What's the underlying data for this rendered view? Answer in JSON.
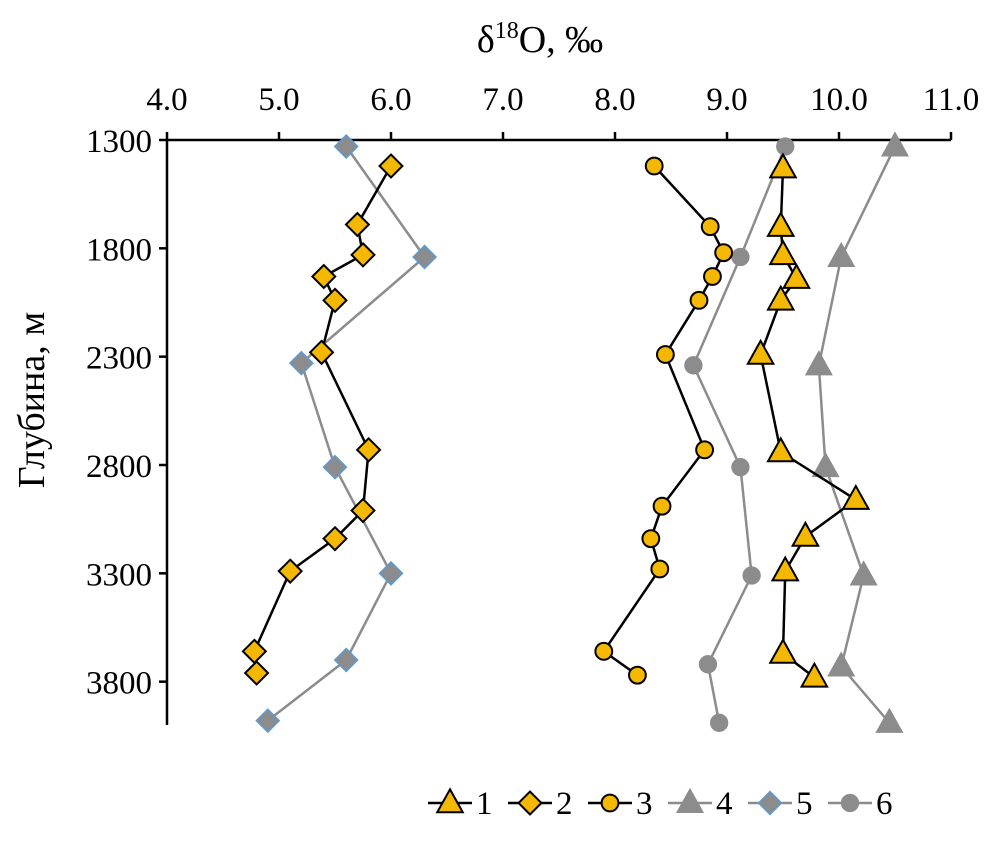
{
  "chart_data": {
    "type": "line",
    "x_axis": {
      "label_main": "δ",
      "label_sup": "18",
      "label_rest": "O, ‰",
      "position": "top",
      "min": 4.0,
      "max": 11.0,
      "ticks": [
        4.0,
        5.0,
        6.0,
        7.0,
        8.0,
        9.0,
        10.0,
        11.0
      ],
      "tick_labels": [
        "4.0",
        "5.0",
        "6.0",
        "7.0",
        "8.0",
        "9.0",
        "10.0",
        "11.0"
      ]
    },
    "y_axis": {
      "label": "Глубина, м",
      "min": 1300,
      "max": 4000,
      "inverted": true,
      "ticks": [
        1300,
        1800,
        2300,
        2800,
        3300,
        3800
      ],
      "tick_labels": [
        "1300",
        "1800",
        "2300",
        "2800",
        "3300",
        "3800"
      ]
    },
    "grid": false,
    "legend_position": "bottom",
    "series": [
      {
        "name": "1",
        "marker": "triangle",
        "line_color": "#000000",
        "fill": "#f5b800",
        "stroke": "#000000",
        "points": [
          [
            9.5,
            1430
          ],
          [
            9.48,
            1700
          ],
          [
            9.5,
            1830
          ],
          [
            9.62,
            1940
          ],
          [
            9.48,
            2040
          ],
          [
            9.3,
            2290
          ],
          [
            9.48,
            2740
          ],
          [
            10.15,
            2960
          ],
          [
            9.7,
            3130
          ],
          [
            9.52,
            3290
          ],
          [
            9.5,
            3670
          ],
          [
            9.78,
            3780
          ]
        ]
      },
      {
        "name": "2",
        "marker": "diamond",
        "line_color": "#000000",
        "fill": "#f5b800",
        "stroke": "#000000",
        "points": [
          [
            6.0,
            1420
          ],
          [
            5.7,
            1690
          ],
          [
            5.75,
            1830
          ],
          [
            5.4,
            1930
          ],
          [
            5.5,
            2040
          ],
          [
            5.38,
            2280
          ],
          [
            5.8,
            2730
          ],
          [
            5.75,
            3010
          ],
          [
            5.5,
            3140
          ],
          [
            5.1,
            3290
          ],
          [
            4.78,
            3660
          ],
          [
            4.8,
            3760
          ]
        ]
      },
      {
        "name": "3",
        "marker": "circle",
        "line_color": "#000000",
        "fill": "#f5b800",
        "stroke": "#000000",
        "points": [
          [
            8.35,
            1420
          ],
          [
            8.85,
            1700
          ],
          [
            8.97,
            1820
          ],
          [
            8.87,
            1930
          ],
          [
            8.75,
            2040
          ],
          [
            8.45,
            2290
          ],
          [
            8.8,
            2730
          ],
          [
            8.42,
            2990
          ],
          [
            8.32,
            3140
          ],
          [
            8.4,
            3280
          ],
          [
            7.9,
            3660
          ],
          [
            8.2,
            3770
          ]
        ]
      },
      {
        "name": "4",
        "marker": "triangle",
        "line_color": "#8c8c8c",
        "fill": "#8c8c8c",
        "stroke": "#8c8c8c",
        "points": [
          [
            10.5,
            1330
          ],
          [
            10.02,
            1840
          ],
          [
            9.82,
            2340
          ],
          [
            9.88,
            2810
          ],
          [
            10.22,
            3310
          ],
          [
            10.02,
            3730
          ],
          [
            10.45,
            3990
          ]
        ]
      },
      {
        "name": "5",
        "marker": "diamond",
        "line_color": "#8c8c8c",
        "fill": "#8c8c8c",
        "stroke": "#5b9bd5",
        "points": [
          [
            5.6,
            1330
          ],
          [
            6.3,
            1840
          ],
          [
            5.2,
            2330
          ],
          [
            5.5,
            2810
          ],
          [
            6.0,
            3300
          ],
          [
            5.6,
            3700
          ],
          [
            4.9,
            3980
          ]
        ]
      },
      {
        "name": "6",
        "marker": "circle",
        "line_color": "#8c8c8c",
        "fill": "#8c8c8c",
        "stroke": "#8c8c8c",
        "points": [
          [
            9.52,
            1330
          ],
          [
            9.12,
            1840
          ],
          [
            8.7,
            2340
          ],
          [
            9.12,
            2810
          ],
          [
            9.22,
            3310
          ],
          [
            8.83,
            3720
          ],
          [
            8.93,
            3990
          ]
        ]
      }
    ]
  }
}
